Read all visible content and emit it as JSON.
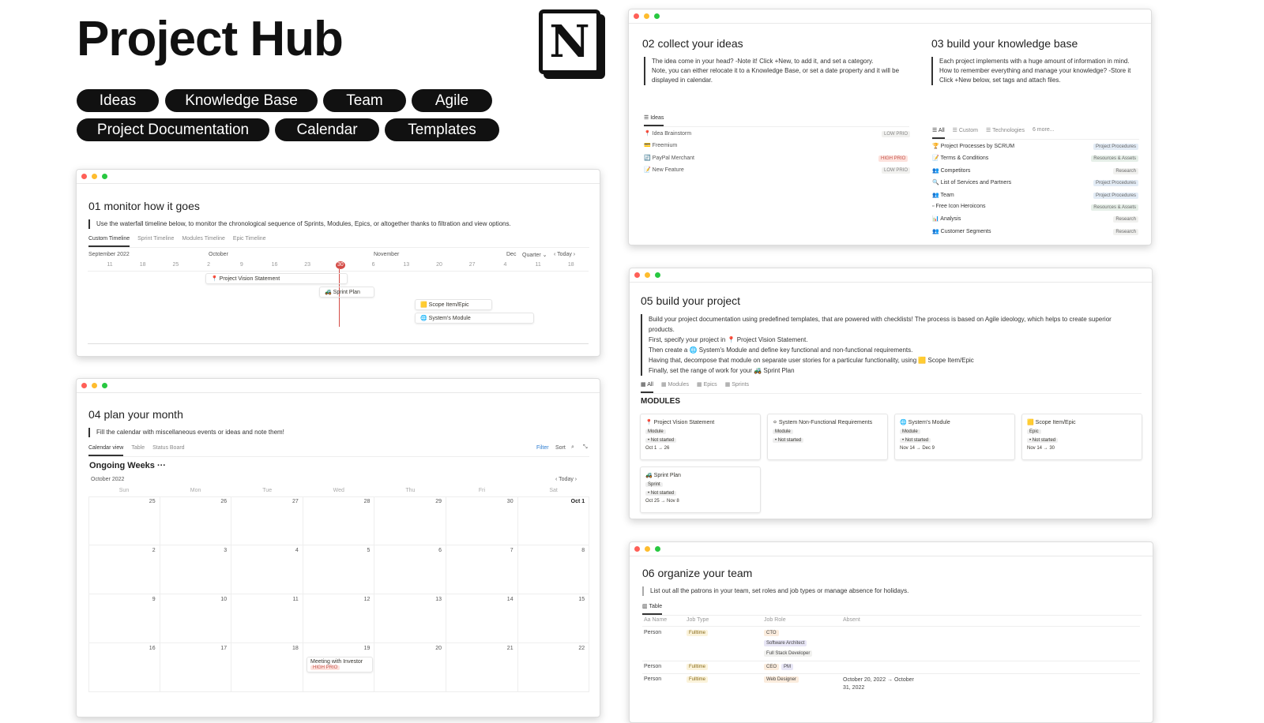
{
  "page_title": "Project Hub",
  "logo_letter": "N",
  "nav": [
    "Ideas",
    "Knowledge Base",
    "Team",
    "Agile",
    "Project Documentation",
    "Calendar",
    "Templates"
  ],
  "colors": {
    "pill_bg": "#111111",
    "today": "#d44c47",
    "filter": "#2e7dd1"
  },
  "monitor": {
    "title": "01 monitor how it goes",
    "desc": "Use the waterfall timeline below, to monitor the chronological sequence of Sprints, Modules, Epics, or altogether thanks to filtration and view options.",
    "tabs": [
      "Custom Timeline",
      "Sprint Timeline",
      "Modules Timeline",
      "Epic Timeline"
    ],
    "months": [
      "September 2022",
      "October",
      "November",
      "Dec"
    ],
    "view": "Quarter",
    "today": "Today",
    "days": [
      "11",
      "18",
      "25",
      "2",
      "9",
      "16",
      "23",
      "30",
      "6",
      "13",
      "20",
      "27",
      "4",
      "11",
      "18"
    ],
    "items": [
      {
        "icon": "📍",
        "label": "Project Vision Statement"
      },
      {
        "icon": "🚜",
        "label": "Sprint Plan"
      },
      {
        "icon": "🟨",
        "label": "Scope Item/Epic"
      },
      {
        "icon": "🌐",
        "label": "System's Module"
      }
    ]
  },
  "ideas": {
    "title": "02 collect your ideas",
    "desc": [
      "The idea come in your head? -Note it! Click +New, to add it, and set a category.",
      "Note, you can either relocate it to a Knowledge Base, or set a date property and it will be",
      "displayed in calendar."
    ],
    "tab": "Ideas",
    "rows": [
      {
        "icon": "📍",
        "name": "Idea Brainstorm",
        "prio": "LOW PRIO"
      },
      {
        "icon": "💳",
        "name": "Freemium",
        "prio": ""
      },
      {
        "icon": "🔄",
        "name": "PayPal Merchant",
        "prio": "HIGH PRIO"
      },
      {
        "icon": "📝",
        "name": "New Feature",
        "prio": "LOW PRIO"
      }
    ]
  },
  "knowledge": {
    "title": "03 build your knowledge base",
    "desc": [
      "Each project implements with a huge amount of information in mind.",
      "How to remember everything and manage your knowledge? -Store it",
      "Click +New below, set tags and attach files."
    ],
    "tabs": [
      "All",
      "Custom",
      "Technologies",
      "6 more..."
    ],
    "rows": [
      {
        "icon": "🏆",
        "name": "Project Processes by SCRUM",
        "tag": "Project Procedures"
      },
      {
        "icon": "📝",
        "name": "Terms & Conditions",
        "tag": "Resources & Assets"
      },
      {
        "icon": "👥",
        "name": "Competitors",
        "tag": "Research"
      },
      {
        "icon": "🔍",
        "name": "List of Services and Partners",
        "tag": "Project Procedures"
      },
      {
        "icon": "👥",
        "name": "Team",
        "tag": "Project Procedures"
      },
      {
        "icon": "▫",
        "name": "Free Icon Heroicons",
        "tag": "Resources & Assets"
      },
      {
        "icon": "📊",
        "name": "Analysis",
        "tag": "Research"
      },
      {
        "icon": "👥",
        "name": "Customer Segments",
        "tag": "Research"
      }
    ]
  },
  "month": {
    "title": "04 plan your month",
    "desc": "Fill the calendar with miscellaneous events or ideas and note them!",
    "tabs": [
      "Calendar view",
      "Table",
      "Status Board"
    ],
    "filter": "Filter",
    "sort": "Sort",
    "group": "Ongoing Weeks",
    "month_label": "October 2022",
    "today": "Today",
    "weekdays": [
      "Sun",
      "Mon",
      "Tue",
      "Wed",
      "Thu",
      "Fri",
      "Sat"
    ],
    "weeks": [
      [
        "25",
        "26",
        "27",
        "28",
        "29",
        "30",
        "Oct 1"
      ],
      [
        "2",
        "3",
        "4",
        "5",
        "6",
        "7",
        "8"
      ],
      [
        "9",
        "10",
        "11",
        "12",
        "13",
        "14",
        "15"
      ],
      [
        "16",
        "17",
        "18",
        "19",
        "20",
        "21",
        "22"
      ]
    ],
    "event": {
      "label": "Meeting with Investor",
      "prio": "HIGH PRIO"
    }
  },
  "project": {
    "title": "05 build your project",
    "desc": [
      "Build your project documentation using predefined templates, that are powered with checklists! The process is based on Agile ideology, which helps to create superior products.",
      "First, specify your project in 📍 Project Vision Statement.",
      "Then create a 🌐 System's Module  and define key functional and non-functional requirements.",
      "Having that, decompose that module on separate user stories for a particular functionality, using 🟨 Scope Item/Epic",
      "Finally, set the range of work for your 🚜 Sprint Plan"
    ],
    "tabs": [
      "All",
      "Modules",
      "Epics",
      "Sprints"
    ],
    "section": "MODULES",
    "cards": [
      {
        "icon": "📍",
        "name": "Project Vision Statement",
        "type": "Module",
        "status": "• Not started",
        "dates": "Oct 1 → 26"
      },
      {
        "icon": "⚪",
        "name": "System Non-Functional Requirements",
        "type": "Module",
        "status": "• Not started",
        "dates": ""
      },
      {
        "icon": "🌐",
        "name": "System's Module",
        "type": "Module",
        "status": "• Not started",
        "dates": "Nov 14 → Dec 9"
      },
      {
        "icon": "🟨",
        "name": "Scope Item/Epic",
        "type": "Epic",
        "status": "• Not started",
        "dates": "Nov 14 → 30"
      },
      {
        "icon": "🚜",
        "name": "Sprint Plan",
        "type": "Sprint",
        "status": "• Not started",
        "dates": "Oct 25 → Nov 8"
      }
    ]
  },
  "team": {
    "title": "06 organize your team",
    "desc": "List out all the patrons in your team, set roles and job types or manage absence for holidays.",
    "tab": "Table",
    "headers": [
      "Aa Name",
      "Job Type",
      "Job Role",
      "Absent"
    ],
    "rows": [
      {
        "name": "Person",
        "type": "Fulltime",
        "roles": [
          "CTO",
          "Software Architect",
          "Full Stack Developer"
        ],
        "absent": ""
      },
      {
        "name": "Person",
        "type": "Fulltime",
        "roles": [
          "CEO",
          "PM"
        ],
        "absent": ""
      },
      {
        "name": "Person",
        "type": "Fulltime",
        "roles": [
          "Web Designer"
        ],
        "absent": "October 20, 2022 → October 31, 2022"
      }
    ]
  }
}
